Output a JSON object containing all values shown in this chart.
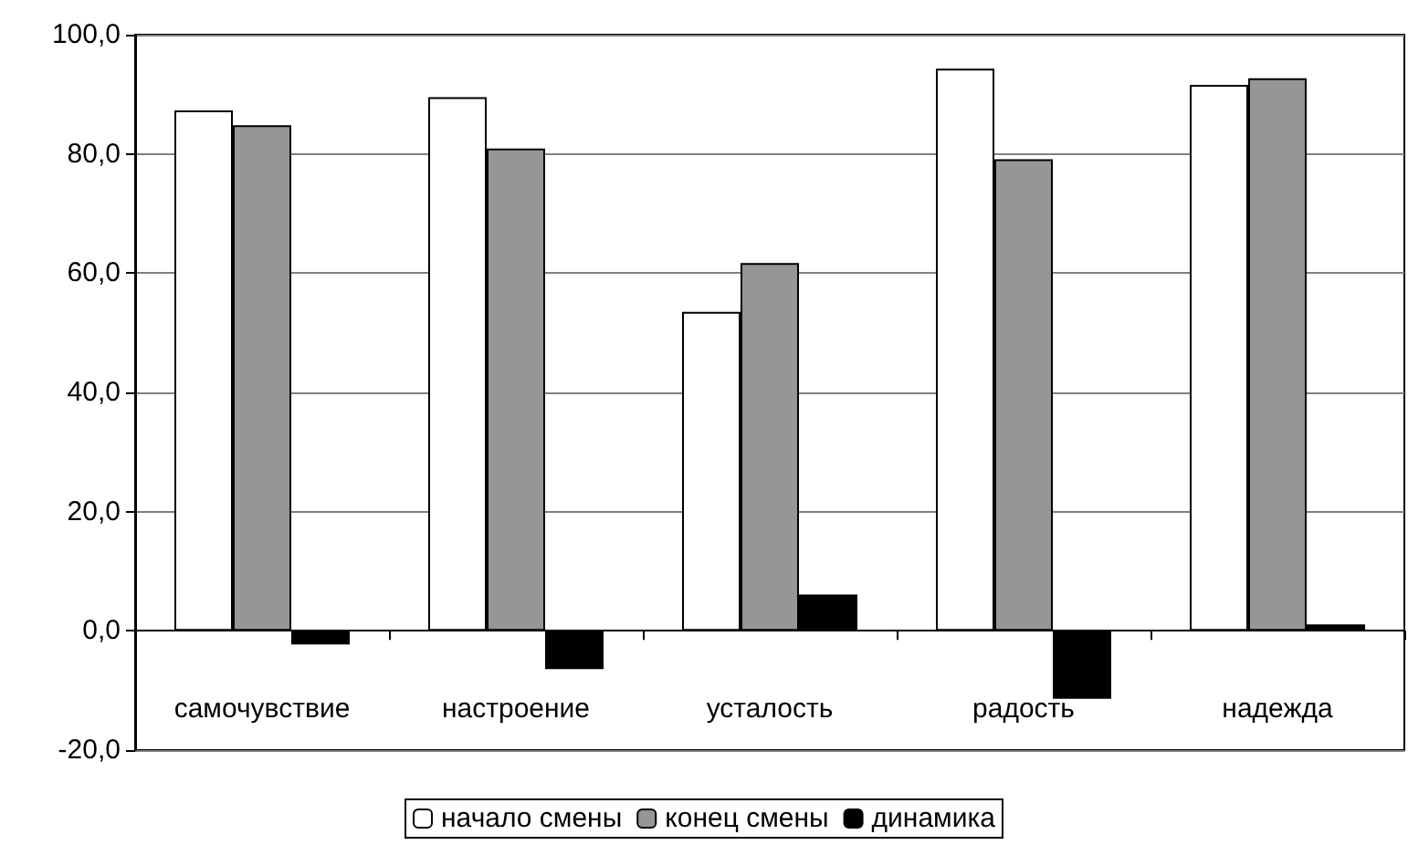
{
  "chart_data": {
    "type": "bar",
    "categories": [
      "самочувствие",
      "настроение",
      "усталость",
      "радость",
      "надежда"
    ],
    "series": [
      {
        "name": "начало смены",
        "color": "#ffffff",
        "values": [
          87.3,
          89.5,
          53.5,
          94.3,
          91.6
        ]
      },
      {
        "name": "конец смены",
        "color": "#969696",
        "values": [
          84.8,
          80.9,
          61.7,
          79.1,
          92.7
        ]
      },
      {
        "name": "динамика",
        "color": "#000000",
        "values": [
          -2.3,
          -6.4,
          6.1,
          -11.4,
          1.1
        ]
      }
    ],
    "ylim": [
      -20,
      100
    ],
    "yticks": [
      {
        "value": -20,
        "label": "-20,0"
      },
      {
        "value": 0,
        "label": "0,0"
      },
      {
        "value": 20,
        "label": "20,0"
      },
      {
        "value": 40,
        "label": "40,0"
      },
      {
        "value": 60,
        "label": "60,0"
      },
      {
        "value": 80,
        "label": "80,0"
      },
      {
        "value": 100,
        "label": "100,0"
      }
    ],
    "grid": "y",
    "legend": "bottom"
  }
}
